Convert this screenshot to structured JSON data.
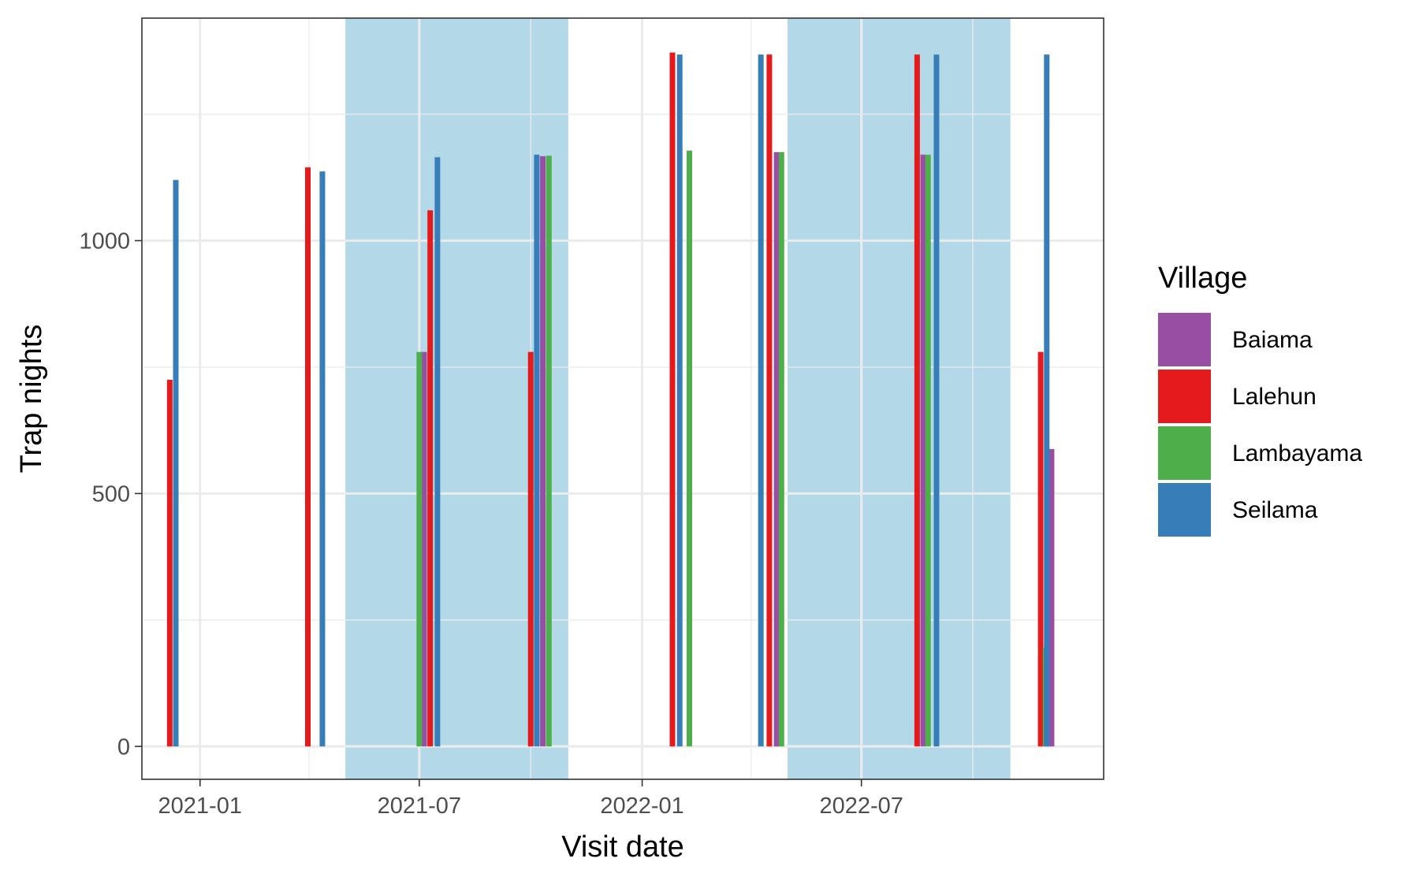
{
  "chart_data": {
    "type": "bar",
    "title": "",
    "xlabel": "Visit date",
    "ylabel": "Trap nights",
    "xlim": [
      "2020-11-14",
      "2023-01-17"
    ],
    "ylim": [
      -65,
      1440
    ],
    "x_ticks": [
      {
        "date": "2021-01-01",
        "label": "2021-01"
      },
      {
        "date": "2021-07-01",
        "label": "2021-07"
      },
      {
        "date": "2022-01-01",
        "label": "2022-01"
      },
      {
        "date": "2022-07-01",
        "label": "2022-07"
      }
    ],
    "x_minor_ticks": [
      "2021-04-01",
      "2021-10-01",
      "2022-04-01",
      "2022-10-01"
    ],
    "y_ticks": [
      0,
      500,
      1000
    ],
    "y_minor_ticks": [
      250,
      750,
      1250
    ],
    "grid": true,
    "shaded_periods": [
      {
        "start": "2021-05-01",
        "end": "2021-10-31",
        "color": "#b3d9e8"
      },
      {
        "start": "2022-05-01",
        "end": "2022-10-31",
        "color": "#b3d9e8"
      }
    ],
    "legend": {
      "title": "Village",
      "position": "right",
      "entries": [
        {
          "name": "Baiama",
          "color": "#984ea3"
        },
        {
          "name": "Lalehun",
          "color": "#e41a1c"
        },
        {
          "name": "Lambayama",
          "color": "#4daf4a"
        },
        {
          "name": "Seilama",
          "color": "#377eb8"
        }
      ]
    },
    "series": [
      {
        "name": "Baiama",
        "color": "#984ea3",
        "points": [
          {
            "date": "2021-07-05",
            "value": 780
          },
          {
            "date": "2021-10-11",
            "value": 1167
          },
          {
            "date": "2022-04-22",
            "value": 1175
          },
          {
            "date": "2022-08-21",
            "value": 1170
          },
          {
            "date": "2022-12-05",
            "value": 588
          }
        ]
      },
      {
        "name": "Lalehun",
        "color": "#e41a1c",
        "points": [
          {
            "date": "2020-12-07",
            "value": 725
          },
          {
            "date": "2021-03-31",
            "value": 1145
          },
          {
            "date": "2021-07-10",
            "value": 1060
          },
          {
            "date": "2021-10-01",
            "value": 780
          },
          {
            "date": "2022-01-26",
            "value": 1372
          },
          {
            "date": "2022-04-16",
            "value": 1368
          },
          {
            "date": "2022-08-16",
            "value": 1368
          },
          {
            "date": "2022-11-26",
            "value": 780
          }
        ]
      },
      {
        "name": "Lambayama",
        "color": "#4daf4a",
        "points": [
          {
            "date": "2021-07-01",
            "value": 780
          },
          {
            "date": "2021-10-16",
            "value": 1168
          },
          {
            "date": "2022-02-09",
            "value": 1178
          },
          {
            "date": "2022-04-26",
            "value": 1175
          },
          {
            "date": "2022-08-25",
            "value": 1170
          },
          {
            "date": "2022-11-30",
            "value": 195
          }
        ]
      },
      {
        "name": "Seilama",
        "color": "#377eb8",
        "points": [
          {
            "date": "2020-12-12",
            "value": 1120
          },
          {
            "date": "2021-04-12",
            "value": 1137
          },
          {
            "date": "2021-07-16",
            "value": 1165
          },
          {
            "date": "2021-10-06",
            "value": 1170
          },
          {
            "date": "2022-02-01",
            "value": 1368
          },
          {
            "date": "2022-04-09",
            "value": 1368
          },
          {
            "date": "2022-09-01",
            "value": 1368
          },
          {
            "date": "2022-12-01",
            "value": 1368
          }
        ]
      }
    ]
  }
}
